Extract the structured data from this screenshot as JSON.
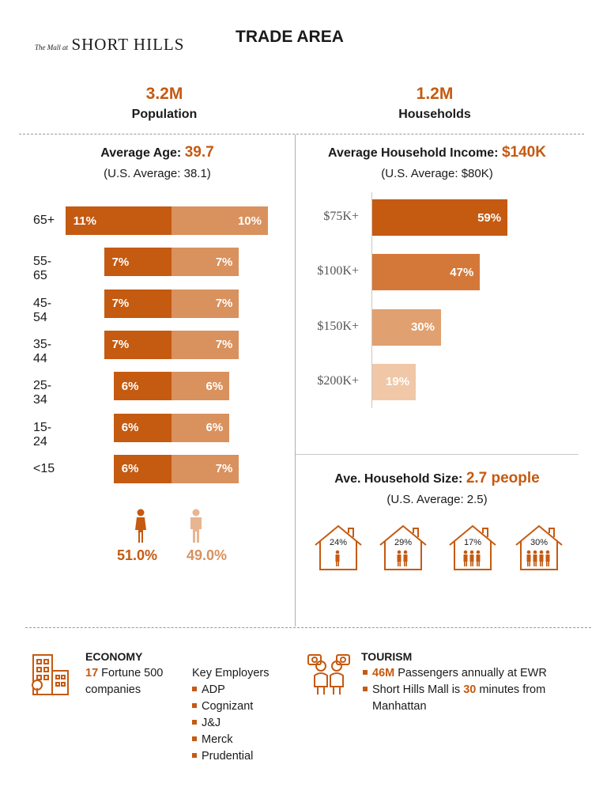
{
  "header": {
    "logo_small": "The Mall at",
    "logo_big": "SHORT HILLS",
    "title": "TRADE AREA"
  },
  "stats": {
    "population_value": "3.2M",
    "population_label": "Population",
    "households_value": "1.2M",
    "households_label": "Households"
  },
  "age": {
    "heading_label": "Average Age:",
    "heading_value": "39.7",
    "note": "(U.S. Average: 38.1)",
    "female_total": "51.0%",
    "male_total": "49.0%"
  },
  "income": {
    "heading_label": "Average Household Income:",
    "heading_value": "$140K",
    "note": "(U.S. Average: $80K)"
  },
  "household_size": {
    "heading_label": "Ave. Household Size:",
    "heading_value": "2.7 people",
    "note": "(U.S. Average: 2.5)",
    "houses": [
      {
        "pct": "24%",
        "people": 1
      },
      {
        "pct": "29%",
        "people": 2
      },
      {
        "pct": "17%",
        "people": 3
      },
      {
        "pct": "30%",
        "people": 4
      }
    ]
  },
  "economy": {
    "title": "ECONOMY",
    "fortune_num": "17",
    "fortune_text": "Fortune 500",
    "fortune_text2": "companies",
    "employers_label": "Key Employers",
    "employers": [
      "ADP",
      "Cognizant",
      "J&J",
      "Merck",
      "Prudential"
    ]
  },
  "tourism": {
    "title": "TOURISM",
    "line1_num": "46M",
    "line1_text": "Passengers annually at EWR",
    "line2_pre": "Short Hills Mall is",
    "line2_num": "30",
    "line2_post": "minutes from",
    "line2_cont": "Manhattan"
  },
  "colors": {
    "dark_orange": "#c55a11",
    "light_orange": "#d9915e",
    "lighter_orange": "#e8b590"
  },
  "chart_data": [
    {
      "type": "bar",
      "categories": [
        "65+",
        "55-65",
        "45-54",
        "35-44",
        "25-34",
        "15-24",
        "<15"
      ],
      "series": [
        {
          "values": [
            11,
            7,
            7,
            7,
            6,
            6,
            6
          ],
          "labels": [
            "11%",
            "7%",
            "7%",
            "7%",
            "6%",
            "6%",
            "6%"
          ]
        },
        {
          "values": [
            10,
            7,
            7,
            7,
            6,
            6,
            7
          ],
          "labels": [
            "10%",
            "7%",
            "7%",
            "7%",
            "6%",
            "6%",
            "7%"
          ]
        }
      ],
      "orientation": "horizontal-diverging",
      "xlabel": "",
      "ylabel": ""
    },
    {
      "type": "bar",
      "categories": [
        "$75K+",
        "$100K+",
        "$150K+",
        "$200K+"
      ],
      "values": [
        59,
        47,
        30,
        19
      ],
      "labels": [
        "59%",
        "47%",
        "30%",
        "19%"
      ],
      "orientation": "horizontal",
      "xlabel": "",
      "ylabel": ""
    }
  ]
}
